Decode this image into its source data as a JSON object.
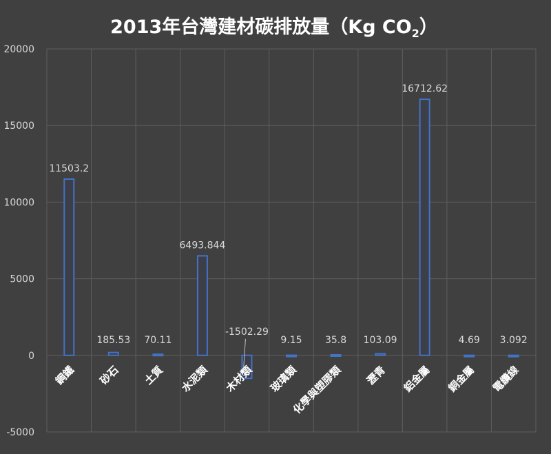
{
  "chart_data": {
    "type": "bar",
    "title": "2013年台灣建材碳排放量（Kg CO",
    "title_subscript": "2",
    "title_suffix": "）",
    "categories": [
      "鋼鐵",
      "砂石",
      "土質",
      "水泥類",
      "木材類",
      "玻璃類",
      "化學與塑膠類",
      "瀝青",
      "鋁金屬",
      "銅金屬",
      "電纜線"
    ],
    "values": [
      11503.2,
      185.53,
      70.11,
      6493.844,
      -1502.29,
      9.15,
      35.8,
      103.09,
      16712.62,
      4.69,
      3.092
    ],
    "data_labels": [
      "11503.2",
      "185.53",
      "70.11",
      "6493.844",
      "-1502.29",
      "9.15",
      "35.8",
      "103.09",
      "16712.62",
      "4.69",
      "3.092"
    ],
    "ylim": [
      -5000,
      20000
    ],
    "y_ticks": [
      20000,
      15000,
      10000,
      5000,
      0,
      -5000
    ],
    "y_tick_labels": [
      "20000",
      "15000",
      "10000",
      "5000",
      "0",
      "-5000"
    ],
    "grid": true,
    "xlabel": "",
    "ylabel": "",
    "colors": {
      "background": "#404040",
      "bar_outline": "#4472c4",
      "bar_fill": "#3d3f48",
      "grid": "#5e5e5e",
      "text": "#d9d9d9",
      "title": "#ffffff"
    }
  }
}
